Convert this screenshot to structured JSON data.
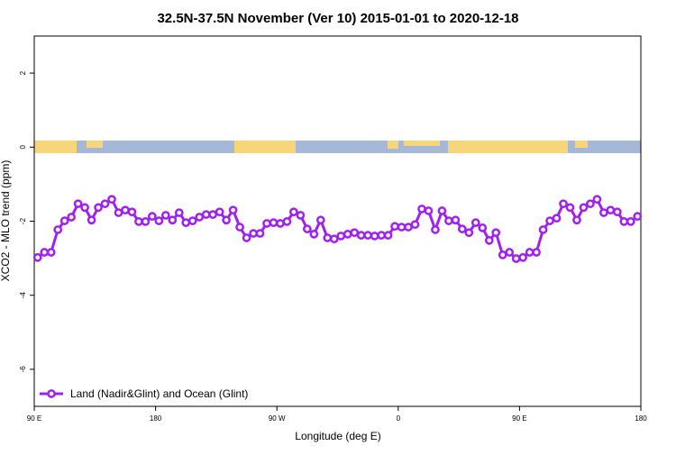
{
  "chart_data": {
    "type": "line",
    "title": "32.5N-37.5N November (Ver 10)   2015-01-01 to 2020-12-18",
    "x_label": "Longitude (deg E)",
    "y_label": "XCO2 - MLO trend (ppm)",
    "xlim": [
      90,
      540
    ],
    "xticks": [
      {
        "value": 90,
        "label": "90 E"
      },
      180,
      {
        "value": 270,
        "label": "90 W"
      },
      {
        "value": 360,
        "label": "0"
      },
      {
        "value": 450,
        "label": "90 E"
      },
      {
        "value": 540,
        "label": "180"
      }
    ],
    "ylim": [
      -7,
      3
    ],
    "yticks": [
      -6,
      -4,
      -2,
      0,
      2
    ],
    "legend": "bottom left",
    "x": [
      92.5,
      97.5,
      102.5,
      107.5,
      112.5,
      117.5,
      122.5,
      127.5,
      132.5,
      137.5,
      142.5,
      147.5,
      152.5,
      157.5,
      162.5,
      167.5,
      172.5,
      177.5,
      182.5,
      187.5,
      192.5,
      197.5,
      202.5,
      207.5,
      212.5,
      217.5,
      222.5,
      227.5,
      232.5,
      237.5,
      242.5,
      247.5,
      252.5,
      257.5,
      262.5,
      267.5,
      272.5,
      277.5,
      282.5,
      287.5,
      292.5,
      297.5,
      302.5,
      307.5,
      312.5,
      317.5,
      322.5,
      327.5,
      332.5,
      337.5,
      342.5,
      347.5,
      352.5,
      357.5,
      362.5,
      367.5,
      372.5,
      377.5,
      382.5,
      387.5,
      392.5,
      397.5,
      402.5,
      407.5,
      412.5,
      417.5,
      422.5,
      427.5,
      432.5,
      437.5,
      442.5,
      447.5,
      452.5,
      457.5,
      462.5,
      467.5,
      472.5,
      477.5,
      482.5,
      487.5,
      492.5,
      497.5,
      502.5,
      507.5,
      512.5,
      517.5,
      522.5,
      527.5,
      532.5,
      537.5
    ],
    "series": [
      {
        "name": "Land (Nadir&Glint) and Ocean (Glint)",
        "color": "#a020f0",
        "values": [
          -2.98,
          -2.84,
          -2.84,
          -2.23,
          -1.99,
          -1.89,
          -1.53,
          -1.63,
          -1.97,
          -1.63,
          -1.53,
          -1.41,
          -1.77,
          -1.7,
          -1.75,
          -2.01,
          -2.01,
          -1.87,
          -1.99,
          -1.84,
          -1.97,
          -1.77,
          -2.04,
          -1.99,
          -1.89,
          -1.82,
          -1.82,
          -1.75,
          -1.97,
          -1.7,
          -2.16,
          -2.45,
          -2.33,
          -2.33,
          -2.06,
          -2.04,
          -2.06,
          -2.01,
          -1.75,
          -1.84,
          -2.21,
          -2.35,
          -1.97,
          -2.45,
          -2.48,
          -2.4,
          -2.35,
          -2.31,
          -2.38,
          -2.38,
          -2.4,
          -2.38,
          -2.38,
          -2.14,
          -2.16,
          -2.16,
          -2.09,
          -1.67,
          -1.72,
          -2.23,
          -1.72,
          -1.99,
          -1.97,
          -2.21,
          -2.31,
          -2.04,
          -2.18,
          -2.52,
          -2.31,
          -2.91,
          -2.84,
          -3.01,
          -2.98,
          -2.84,
          -2.84,
          -2.23,
          -1.99,
          -1.92,
          -1.53,
          -1.63,
          -1.97,
          -1.63,
          -1.53,
          -1.41,
          -1.77,
          -1.7,
          -1.75,
          -2.01,
          -2.01,
          -1.87
        ]
      }
    ]
  }
}
